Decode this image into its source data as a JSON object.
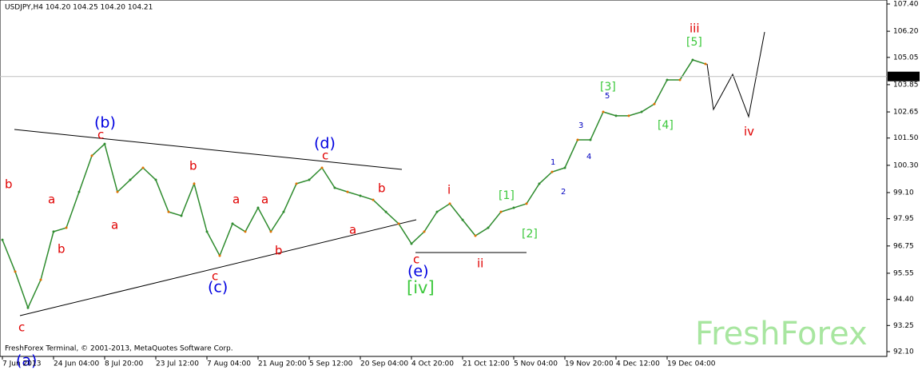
{
  "chart_data": {
    "type": "line",
    "title": "USDJPY,H4  104.20 104.25 104.20 104.21",
    "footer": "FreshForex Terminal, © 2001-2013, MetaQuotes Software Corp.",
    "watermark": "FreshForex",
    "categories": [
      "7 Jun 2013",
      null,
      null,
      null,
      "24 Jun 04:00",
      null,
      null,
      null,
      "8 Jul 20:00",
      null,
      null,
      null,
      "23 Jul 12:00",
      null,
      null,
      null,
      "7 Aug 04:00",
      null,
      null,
      null,
      "21 Aug 20:00",
      null,
      null,
      null,
      "5 Sep 12:00",
      null,
      null,
      null,
      "20 Sep 04:00",
      null,
      null,
      null,
      "4 Oct 20:00",
      null,
      null,
      null,
      "21 Oct 12:00",
      null,
      null,
      null,
      "5 Nov 04:00",
      null,
      null,
      null,
      "19 Nov 20:00",
      null,
      null,
      null,
      "4 Dec 12:00",
      null,
      null,
      null,
      "19 Dec 04:00",
      null,
      null,
      null
    ],
    "series": [
      {
        "name": "USDJPY",
        "color": "#2e8b2e",
        "values": [
          97.02,
          95.62,
          94.03,
          95.26,
          97.38,
          97.55,
          99.13,
          100.72,
          101.24,
          99.13,
          99.66,
          100.19,
          99.66,
          98.25,
          98.08,
          99.49,
          97.38,
          96.32,
          97.73,
          97.38,
          98.43,
          97.38,
          98.25,
          99.49,
          99.66,
          100.19,
          99.31,
          99.13,
          98.96,
          98.78,
          98.25,
          97.73,
          96.85,
          97.38,
          98.25,
          98.61,
          97.9,
          97.2,
          97.55,
          98.25,
          98.43,
          98.61,
          99.49,
          100.01,
          100.19,
          101.42,
          101.42,
          102.65,
          102.48,
          102.48,
          102.65,
          103.0,
          104.06,
          104.06,
          104.94,
          104.76
        ]
      }
    ],
    "ylim": [
      92.1,
      107.4
    ],
    "yticks": [
      {
        "value": 92.1,
        "label": "92.10"
      },
      {
        "value": 93.25,
        "label": "93.25"
      },
      {
        "value": 94.4,
        "label": "94.40"
      },
      {
        "value": 95.55,
        "label": "95.55"
      },
      {
        "value": 96.75,
        "label": "96.75"
      },
      {
        "value": 97.95,
        "label": "97.95"
      },
      {
        "value": 99.1,
        "label": "99.10"
      },
      {
        "value": 100.3,
        "label": "100.30"
      },
      {
        "value": 101.5,
        "label": "101.50"
      },
      {
        "value": 102.65,
        "label": "102.65"
      },
      {
        "value": 103.85,
        "label": "103.85"
      },
      {
        "value": 105.05,
        "label": "105.05"
      },
      {
        "value": 106.2,
        "label": "106.20"
      },
      {
        "value": 107.4,
        "label": "107.40"
      }
    ],
    "last_price": 104.21,
    "annotations": [
      "(a)",
      "c",
      "b",
      "a",
      "b",
      "(b)",
      "c",
      "a",
      "b",
      "c",
      "(c)",
      "a",
      "b",
      "a",
      "(d)",
      "c",
      "b",
      "a",
      "c",
      "(e)",
      "[iv]",
      "i",
      "ii",
      "[1]",
      "[2]",
      "1",
      "2",
      "3",
      "4",
      "[3]",
      "5",
      "[4]",
      "[5]",
      "iii",
      "iv"
    ]
  }
}
